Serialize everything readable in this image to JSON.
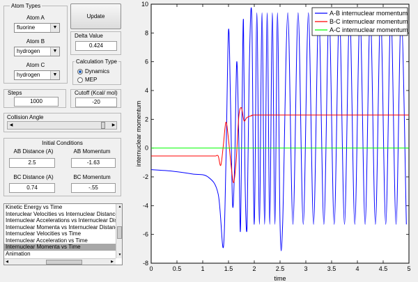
{
  "atom_types": {
    "title": "Atom Types",
    "atom_a": {
      "label": "Atom A",
      "value": "fluorine"
    },
    "atom_b": {
      "label": "Atom B",
      "value": "hydrogen"
    },
    "atom_c": {
      "label": "Atom C",
      "value": "hydrogen"
    }
  },
  "update_button": "Update",
  "delta": {
    "title": "Delta Value",
    "value": "0.424"
  },
  "calc_type": {
    "title": "Calculation Type",
    "options": [
      "Dynamics",
      "MEP"
    ],
    "selected": "Dynamics"
  },
  "steps": {
    "title": "Steps",
    "value": "1000"
  },
  "cutoff": {
    "title": "Cutoff (Kcal/ mol)",
    "value": "-20"
  },
  "collision_angle": {
    "title": "Collision Angle",
    "level": 0.95
  },
  "initial_conditions": {
    "title": "Initial Conditions",
    "ab_distance": {
      "label": "AB Distance (A)",
      "value": "2.5"
    },
    "ab_momentum": {
      "label": "AB Momentum",
      "value": "-1.63"
    },
    "bc_distance": {
      "label": "BC Distance (A)",
      "value": "0.74"
    },
    "bc_momentum": {
      "label": "BC Momentum",
      "value": "-.55"
    }
  },
  "plot_list": {
    "items": [
      "Kinetic Energy vs Time",
      "Interuclear Velocities vs Internuclear Distance",
      "Internuclear Accelerations vs Internuclear Dista",
      "Internuclear Momenta vs Internuclear Distance",
      "Internuclear Velocities vs Time",
      "Internuclear Acceleration vs Time",
      "Internuclear Momenta vs Time",
      "Animation"
    ],
    "selected_index": 6
  },
  "chart_data": {
    "type": "line",
    "xlabel": "time",
    "ylabel": "internuclear momentum",
    "xlim": [
      0,
      5
    ],
    "ylim": [
      -8,
      10
    ],
    "x_ticks": [
      "0",
      "0.5",
      "1",
      "1.5",
      "2",
      "2.5",
      "3",
      "3.5",
      "4",
      "4.5",
      "5"
    ],
    "y_ticks": [
      "10",
      "8",
      "6",
      "4",
      "2",
      "0",
      "-2",
      "-4",
      "-6",
      "-8"
    ],
    "grid": false,
    "legend_position": "top-right",
    "series": [
      {
        "name": "A-B internuclear momentum",
        "color": "#0000ff",
        "x": [
          0,
          0.4,
          0.8,
          1.1,
          1.3,
          1.4,
          1.45,
          1.5,
          1.54,
          1.58,
          1.62,
          1.66,
          1.7,
          1.73,
          1.76,
          1.79,
          1.82,
          1.86,
          1.9,
          1.95,
          2.0,
          2.05,
          2.1,
          2.15,
          2.2,
          2.25,
          2.3,
          2.35,
          2.4,
          2.45,
          2.5,
          5
        ],
        "y": [
          -1.5,
          -1.6,
          -1.8,
          -2.0,
          -3.2,
          -6.9,
          -1.0,
          8.2,
          3.0,
          -4.0,
          -1.0,
          6.0,
          0.5,
          -5.8,
          2.0,
          8.9,
          -2.0,
          -5.5,
          5.0,
          9.3,
          -5.3,
          9.4,
          -5.3,
          9.4,
          -5.3,
          9.4,
          -5.3,
          9.4,
          -5.3,
          9.4,
          -5.3,
          9.4
        ]
      },
      {
        "name": "B-C internuclear momentum",
        "color": "#ff0000",
        "x": [
          0,
          1.3,
          1.35,
          1.4,
          1.45,
          1.5,
          1.55,
          1.6,
          1.65,
          1.7,
          1.75,
          1.8,
          1.85,
          1.9,
          1.95,
          2.0,
          2.5,
          3.0,
          5.0
        ],
        "y": [
          -0.55,
          -0.55,
          -1.2,
          0.2,
          1.8,
          0.6,
          -1.2,
          -2.4,
          -0.8,
          2.2,
          2.8,
          1.9,
          2.1,
          2.2,
          2.25,
          2.3,
          2.3,
          2.3,
          2.3
        ]
      },
      {
        "name": "A-C internuclear momentum",
        "color": "#00ff00",
        "x": [
          0,
          5
        ],
        "y": [
          0,
          0
        ]
      }
    ]
  }
}
